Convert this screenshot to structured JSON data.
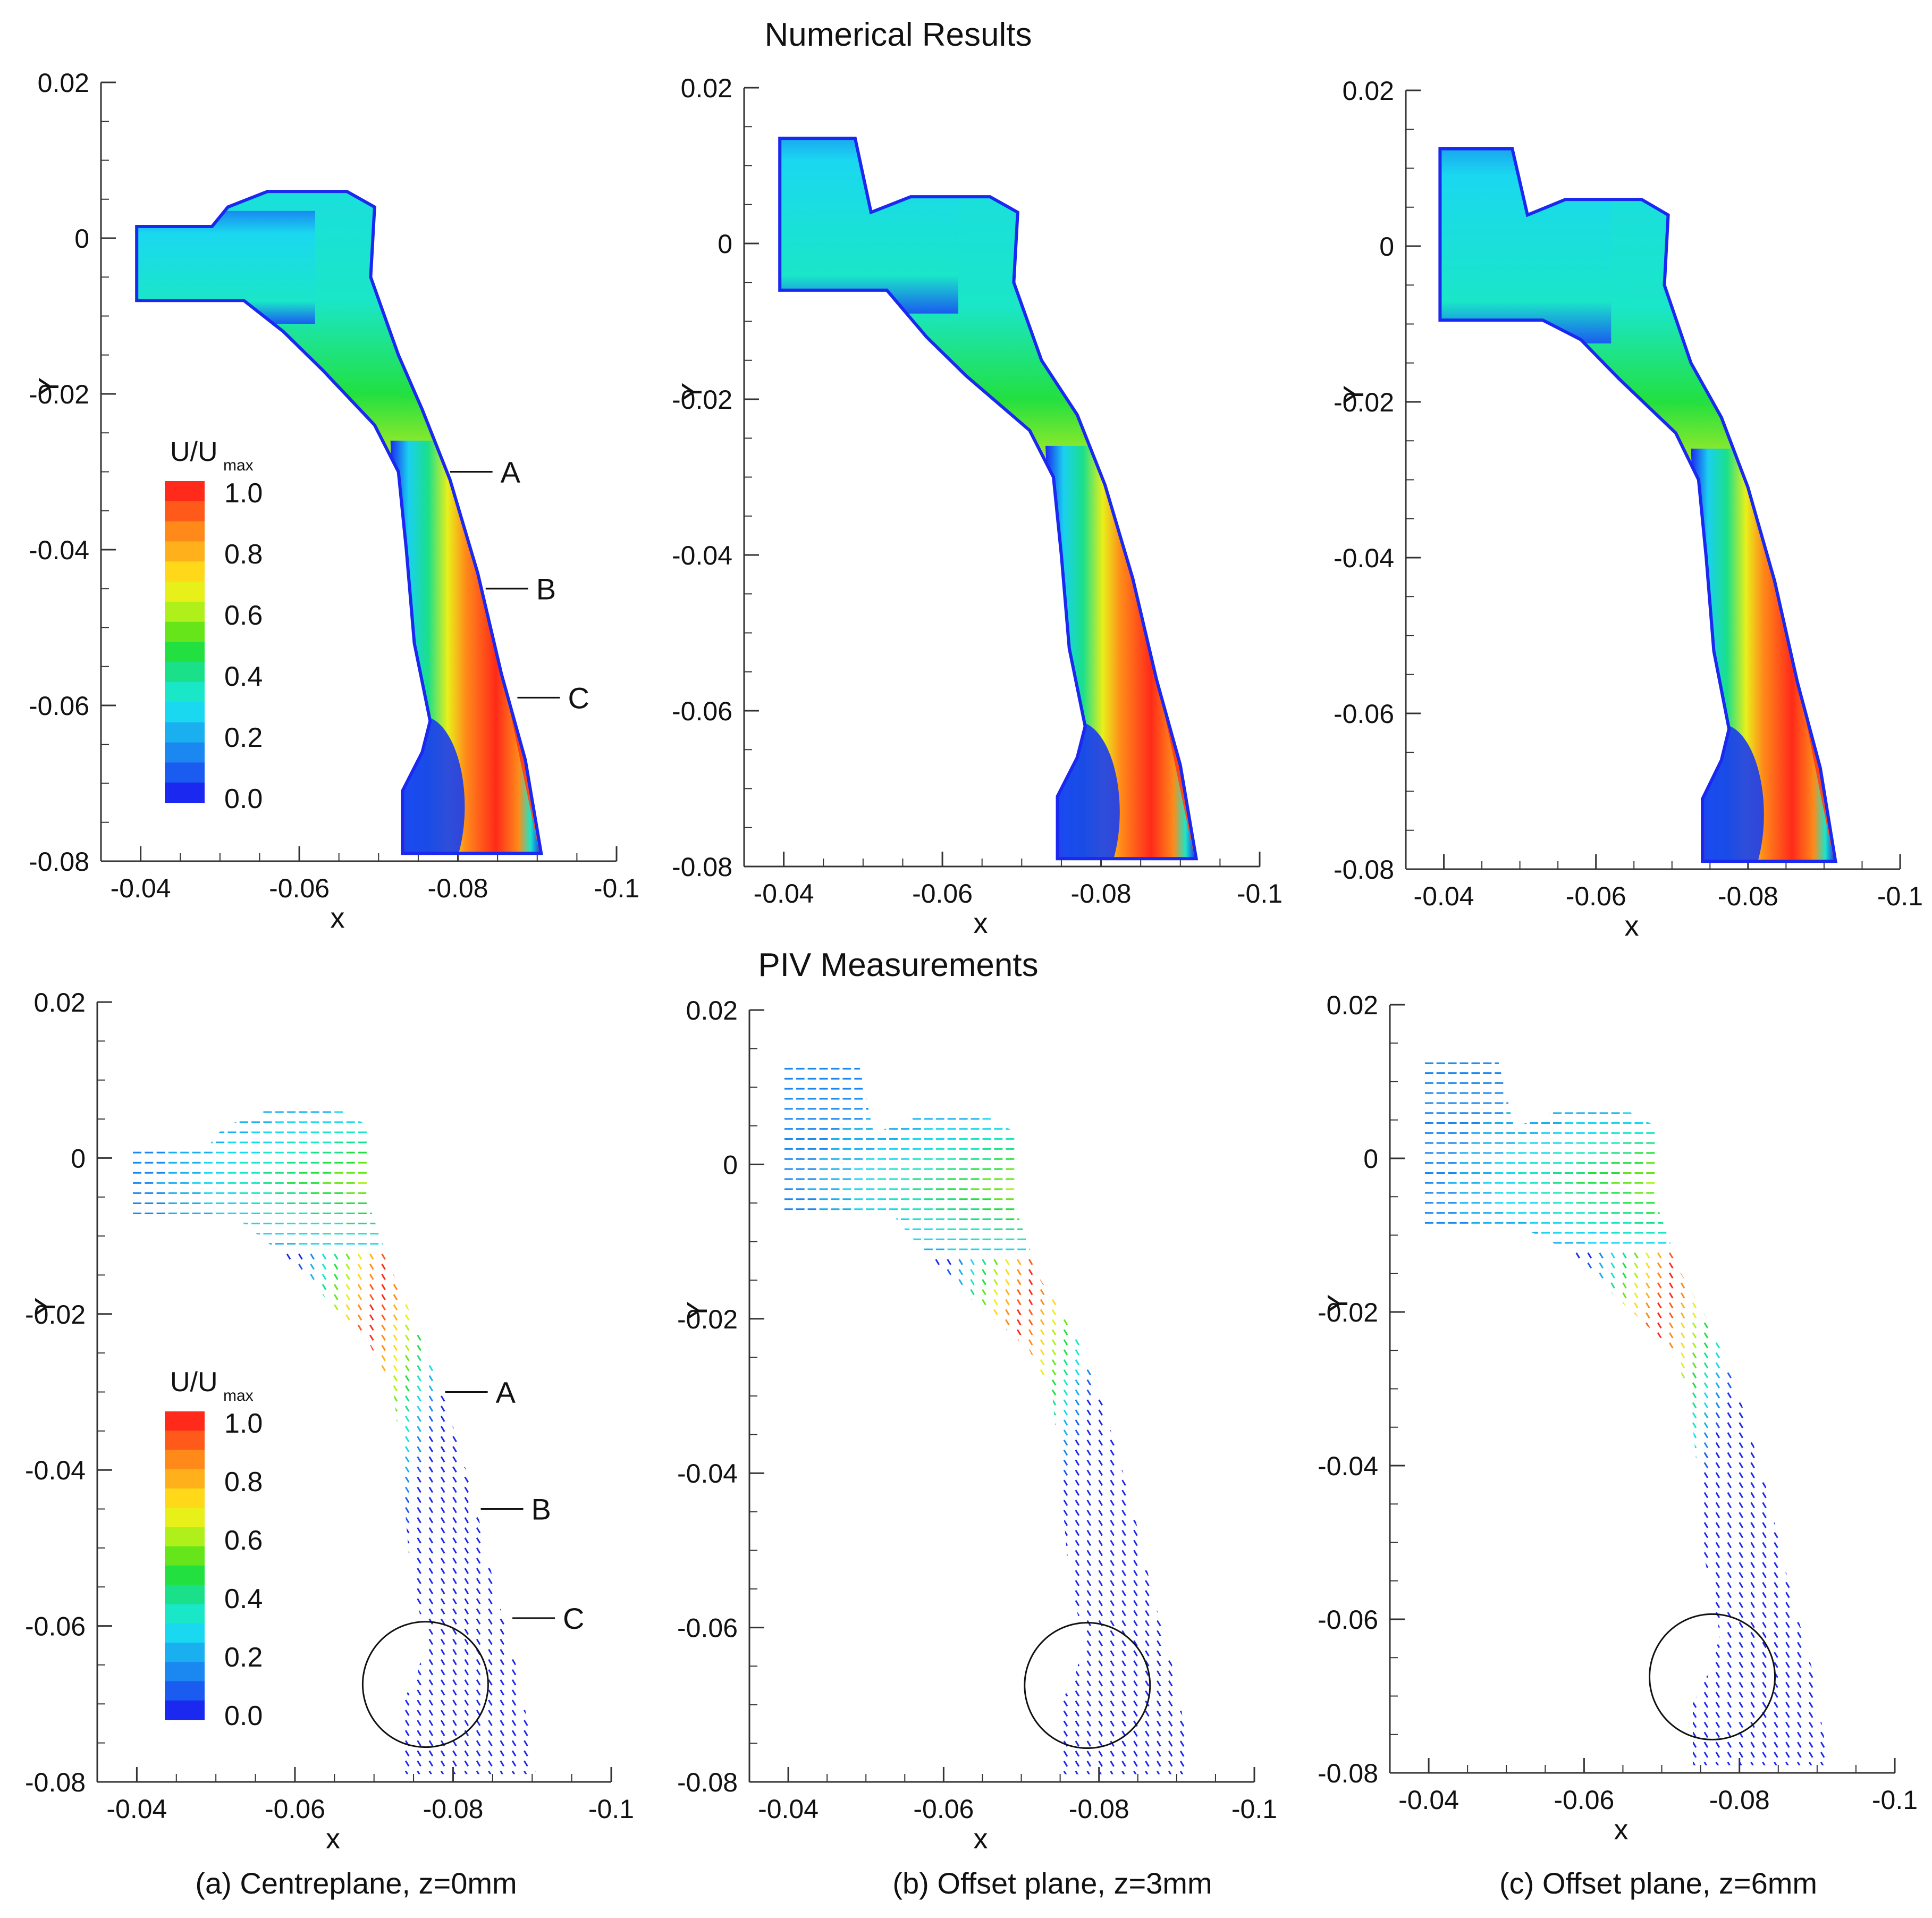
{
  "figure": {
    "row_titles": {
      "top": "Numerical Results",
      "bottom": "PIV Measurements"
    },
    "captions": [
      "(a) Centreplane, z=0mm",
      "(b) Offset plane, z=3mm",
      "(c) Offset plane, z=6mm"
    ],
    "colorbar": {
      "title_main": "U/U",
      "title_sub": "max",
      "tick_labels": [
        "1.0",
        "0.8",
        "0.6",
        "0.4",
        "0.2",
        "0.0"
      ],
      "colors": [
        "#ff2a1a",
        "#ff5a1a",
        "#ff8a1a",
        "#ffb01a",
        "#ffd81a",
        "#e8f01a",
        "#b0f01a",
        "#66e61a",
        "#22e040",
        "#1ae08a",
        "#1ae6c8",
        "#1ad8f0",
        "#1ab0f0",
        "#1a88f0",
        "#1a5cf0",
        "#1a28f0"
      ]
    },
    "line_labels": [
      "A",
      "B",
      "C"
    ]
  },
  "chart_data": [
    {
      "type": "heatmap",
      "panel": "numerical-a",
      "title": "Numerical Results",
      "plane": "Centreplane, z=0mm",
      "xlabel": "x",
      "ylabel": "Y",
      "xlim": [
        -0.035,
        -0.1
      ],
      "ylim": [
        -0.08,
        0.02
      ],
      "xticks": [
        "-0.04",
        "-0.06",
        "-0.08",
        "-0.1"
      ],
      "yticks": [
        "0.02",
        "0",
        "-0.02",
        "-0.04",
        "-0.06",
        "-0.08"
      ],
      "field": "U/Umax",
      "range": [
        0.0,
        1.0
      ],
      "max_region": "jet core along lower channel, x≈-0.08 to -0.085",
      "annotations": [
        "A",
        "B",
        "C"
      ]
    },
    {
      "type": "heatmap",
      "panel": "numerical-b",
      "title": "Numerical Results",
      "plane": "Offset plane, z=3mm",
      "xlabel": "x",
      "ylabel": "Y",
      "xlim": [
        -0.035,
        -0.1
      ],
      "ylim": [
        -0.08,
        0.02
      ],
      "xticks": [
        "-0.04",
        "-0.06",
        "-0.08",
        "-0.1"
      ],
      "yticks": [
        "0.02",
        "0",
        "-0.02",
        "-0.04",
        "-0.06",
        "-0.08"
      ],
      "field": "U/Umax",
      "range": [
        0.0,
        1.0
      ]
    },
    {
      "type": "heatmap",
      "panel": "numerical-c",
      "title": "Numerical Results",
      "plane": "Offset plane, z=6mm",
      "xlabel": "x",
      "ylabel": "Y",
      "xlim": [
        -0.035,
        -0.1
      ],
      "ylim": [
        -0.08,
        0.02
      ],
      "xticks": [
        "-0.04",
        "-0.06",
        "-0.08",
        "-0.1"
      ],
      "yticks": [
        "0.02",
        "0",
        "-0.02",
        "-0.04",
        "-0.06",
        "-0.08"
      ],
      "field": "U/Umax",
      "range": [
        0.0,
        1.0
      ]
    },
    {
      "type": "scatter",
      "panel": "piv-a",
      "title": "PIV Measurements",
      "plane": "Centreplane, z=0mm",
      "xlabel": "x",
      "ylabel": "Y",
      "xlim": [
        -0.035,
        -0.1
      ],
      "ylim": [
        -0.08,
        0.02
      ],
      "xticks": [
        "-0.04",
        "-0.06",
        "-0.08",
        "-0.1"
      ],
      "yticks": [
        "0.02",
        "0",
        "-0.02",
        "-0.04",
        "-0.06",
        "-0.08"
      ],
      "field": "U/Umax vectors",
      "range": [
        0.0,
        1.0
      ],
      "recirculation_circle_center": [
        -0.0765,
        -0.0675
      ],
      "annotations": [
        "A",
        "B",
        "C"
      ]
    },
    {
      "type": "scatter",
      "panel": "piv-b",
      "title": "PIV Measurements",
      "plane": "Offset plane, z=3mm",
      "xlabel": "x",
      "ylabel": "Y",
      "xlim": [
        -0.035,
        -0.1
      ],
      "ylim": [
        -0.08,
        0.02
      ],
      "xticks": [
        "-0.04",
        "-0.06",
        "-0.08",
        "-0.1"
      ],
      "yticks": [
        "0.02",
        "0",
        "-0.02",
        "-0.04",
        "-0.06",
        "-0.08"
      ],
      "field": "U/Umax vectors",
      "range": [
        0.0,
        1.0
      ],
      "recirculation_circle_center": [
        -0.0785,
        -0.0675
      ]
    },
    {
      "type": "scatter",
      "panel": "piv-c",
      "title": "PIV Measurements",
      "plane": "Offset plane, z=6mm",
      "xlabel": "x",
      "ylabel": "Y",
      "xlim": [
        -0.035,
        -0.1
      ],
      "ylim": [
        -0.08,
        0.02
      ],
      "xticks": [
        "-0.04",
        "-0.06",
        "-0.08",
        "-0.1"
      ],
      "yticks": [
        "0.02",
        "0",
        "-0.02",
        "-0.04",
        "-0.06",
        "-0.08"
      ],
      "field": "U/Umax vectors",
      "range": [
        0.0,
        1.0
      ],
      "recirculation_circle_center": [
        -0.0765,
        -0.0675
      ]
    }
  ]
}
